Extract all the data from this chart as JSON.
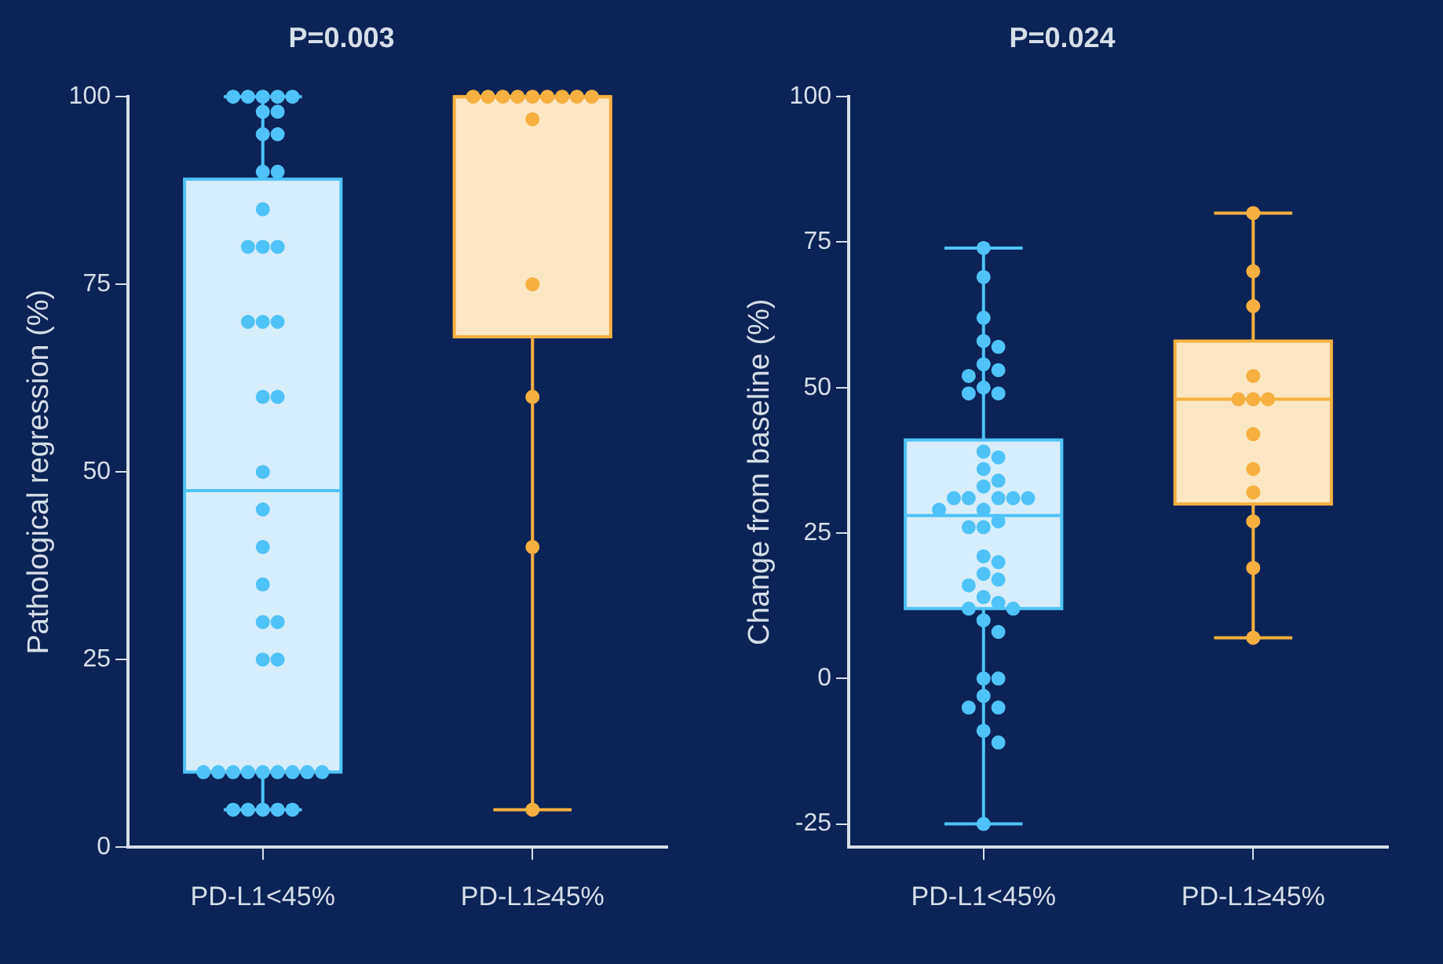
{
  "chart_data": [
    {
      "type": "box",
      "title": "P=0.003",
      "ylabel": "Pathological regression (%)",
      "categories": [
        "PD-L1<45%",
        "PD-L1≥45%"
      ],
      "ylim": [
        0,
        100
      ],
      "yticks": [
        0,
        25,
        50,
        75,
        100
      ],
      "grid": false,
      "legend": false,
      "marker": "circle",
      "colors": [
        "#d6edfc",
        "#fde6c2"
      ],
      "boxes": [
        {
          "low": 5,
          "q1": 10,
          "median": 47.5,
          "q3": 89,
          "high": 100
        },
        {
          "low": 5,
          "q1": 68,
          "median": 100,
          "q3": 100,
          "high": 100
        }
      ],
      "series": [
        {
          "type": "scatter",
          "color": "#4fc3f7",
          "x": [
            "PD-L1<45%",
            "PD-L1<45%",
            "PD-L1<45%",
            "PD-L1<45%",
            "PD-L1<45%",
            "PD-L1<45%",
            "PD-L1<45%",
            "PD-L1<45%",
            "PD-L1<45%",
            "PD-L1<45%",
            "PD-L1<45%",
            "PD-L1<45%",
            "PD-L1<45%",
            "PD-L1<45%",
            "PD-L1<45%",
            "PD-L1<45%",
            "PD-L1<45%",
            "PD-L1<45%",
            "PD-L1<45%",
            "PD-L1<45%",
            "PD-L1<45%",
            "PD-L1<45%",
            "PD-L1<45%",
            "PD-L1<45%",
            "PD-L1<45%",
            "PD-L1<45%",
            "PD-L1<45%",
            "PD-L1<45%",
            "PD-L1<45%",
            "PD-L1<45%",
            "PD-L1<45%",
            "PD-L1<45%",
            "PD-L1<45%",
            "PD-L1<45%",
            "PD-L1<45%",
            "PD-L1<45%",
            "PD-L1<45%",
            "PD-L1<45%",
            "PD-L1<45%",
            "PD-L1<45%",
            "PD-L1<45%",
            "PD-L1<45%"
          ],
          "values": [
            100,
            100,
            100,
            100,
            100,
            98,
            98,
            95,
            95,
            90,
            90,
            85,
            80,
            80,
            80,
            70,
            70,
            70,
            60,
            60,
            50,
            45,
            40,
            35,
            30,
            30,
            25,
            25,
            10,
            10,
            10,
            10,
            10,
            10,
            10,
            10,
            10,
            5,
            5,
            5,
            5,
            5
          ]
        },
        {
          "type": "scatter",
          "color": "#f5b040",
          "x": [
            "PD-L1≥45%",
            "PD-L1≥45%",
            "PD-L1≥45%",
            "PD-L1≥45%",
            "PD-L1≥45%",
            "PD-L1≥45%",
            "PD-L1≥45%",
            "PD-L1≥45%",
            "PD-L1≥45%",
            "PD-L1≥45%",
            "PD-L1≥45%",
            "PD-L1≥45%",
            "PD-L1≥45%",
            "PD-L1≥45%"
          ],
          "values": [
            100,
            100,
            100,
            100,
            100,
            100,
            100,
            100,
            100,
            97,
            75,
            60,
            40,
            5
          ]
        }
      ]
    },
    {
      "type": "box",
      "title": "P=0.024",
      "ylabel": "Change from baseline (%)",
      "categories": [
        "PD-L1<45%",
        "PD-L1≥45%"
      ],
      "ylim": [
        -29,
        100
      ],
      "yticks": [
        -25,
        0,
        25,
        50,
        75,
        100
      ],
      "grid": false,
      "legend": false,
      "marker": "circle",
      "colors": [
        "#d6edfc",
        "#fde6c2"
      ],
      "boxes": [
        {
          "low": -25,
          "q1": 12,
          "median": 28,
          "q3": 41,
          "high": 74
        },
        {
          "low": 7,
          "q1": 30,
          "median": 48,
          "q3": 58,
          "high": 80
        }
      ],
      "series": [
        {
          "type": "scatter",
          "color": "#4fc3f7",
          "x": [
            "PD-L1<45%",
            "PD-L1<45%",
            "PD-L1<45%",
            "PD-L1<45%",
            "PD-L1<45%",
            "PD-L1<45%",
            "PD-L1<45%",
            "PD-L1<45%",
            "PD-L1<45%",
            "PD-L1<45%",
            "PD-L1<45%",
            "PD-L1<45%",
            "PD-L1<45%",
            "PD-L1<45%",
            "PD-L1<45%",
            "PD-L1<45%",
            "PD-L1<45%",
            "PD-L1<45%",
            "PD-L1<45%",
            "PD-L1<45%",
            "PD-L1<45%",
            "PD-L1<45%",
            "PD-L1<45%",
            "PD-L1<45%",
            "PD-L1<45%",
            "PD-L1<45%",
            "PD-L1<45%",
            "PD-L1<45%",
            "PD-L1<45%",
            "PD-L1<45%",
            "PD-L1<45%",
            "PD-L1<45%",
            "PD-L1<45%",
            "PD-L1<45%",
            "PD-L1<45%",
            "PD-L1<45%",
            "PD-L1<45%",
            "PD-L1<45%",
            "PD-L1<45%",
            "PD-L1<45%",
            "PD-L1<45%",
            "PD-L1<45%",
            "PD-L1<45%",
            "PD-L1<45%",
            "PD-L1<45%"
          ],
          "values": [
            74,
            69,
            62,
            58,
            57,
            54,
            53,
            52,
            50,
            49,
            49,
            39,
            38,
            36,
            34,
            33,
            31,
            31,
            31,
            31,
            31,
            29,
            29,
            27,
            26,
            26,
            21,
            20,
            18,
            17,
            16,
            14,
            13,
            12,
            12,
            10,
            8,
            0,
            0,
            -3,
            -5,
            -5,
            -9,
            -11,
            -25
          ]
        },
        {
          "type": "scatter",
          "color": "#f5b040",
          "x": [
            "PD-L1≥45%",
            "PD-L1≥45%",
            "PD-L1≥45%",
            "PD-L1≥45%",
            "PD-L1≥45%",
            "PD-L1≥45%",
            "PD-L1≥45%",
            "PD-L1≥45%",
            "PD-L1≥45%",
            "PD-L1≥45%",
            "PD-L1≥45%",
            "PD-L1≥45%",
            "PD-L1≥45%"
          ],
          "values": [
            80,
            70,
            64,
            52,
            48,
            48,
            48,
            42,
            36,
            32,
            27,
            19,
            7
          ]
        }
      ]
    }
  ]
}
